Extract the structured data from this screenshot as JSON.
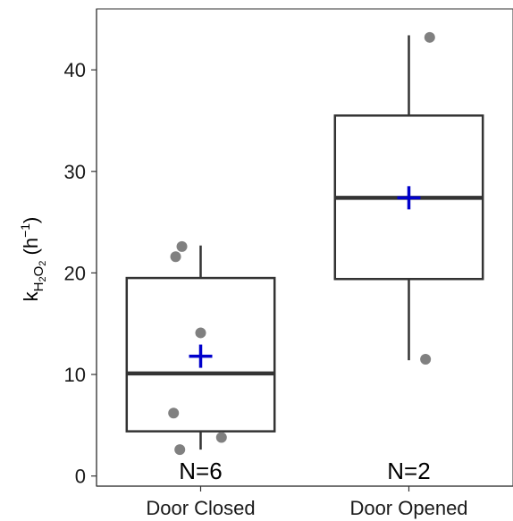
{
  "chart_data": {
    "type": "box",
    "categories": [
      "Door Closed",
      "Door Opened"
    ],
    "ylabel": {
      "base": "k",
      "sub_h": "H",
      "sub_2a": "2",
      "sub_o": "O",
      "sub_2b": "2",
      "unit_open": " (h",
      "unit_exp": "−1",
      "unit_close": ")"
    },
    "ylim": [
      -1,
      46
    ],
    "yticks": [
      0,
      10,
      20,
      30,
      40
    ],
    "ytick_labels": [
      "0",
      "10",
      "20",
      "30",
      "40"
    ],
    "grid": false,
    "groups": [
      {
        "category": "Door Closed",
        "n_label": "N=6",
        "q1": 4.4,
        "median": 10.1,
        "q3": 19.5,
        "whisker_low": 2.6,
        "whisker_high": 22.7,
        "mean": 11.8,
        "points": [
          {
            "x": -0.09,
            "y": 22.6
          },
          {
            "x": -0.12,
            "y": 21.6
          },
          {
            "x": 0.0,
            "y": 14.1
          },
          {
            "x": -0.13,
            "y": 6.2
          },
          {
            "x": 0.1,
            "y": 3.8
          },
          {
            "x": -0.1,
            "y": 2.6
          }
        ]
      },
      {
        "category": "Door Opened",
        "n_label": "N=2",
        "q1": 19.4,
        "median": 27.4,
        "q3": 35.5,
        "whisker_low": 11.4,
        "whisker_high": 43.4,
        "mean": 27.4,
        "points": [
          {
            "x": 0.1,
            "y": 43.2
          },
          {
            "x": 0.08,
            "y": 11.5
          }
        ]
      }
    ],
    "colors": {
      "box_line": "#333333",
      "point": "#808080",
      "mean_marker": "#0000cc",
      "axis": "#333333",
      "panel_border": "#555555"
    }
  }
}
